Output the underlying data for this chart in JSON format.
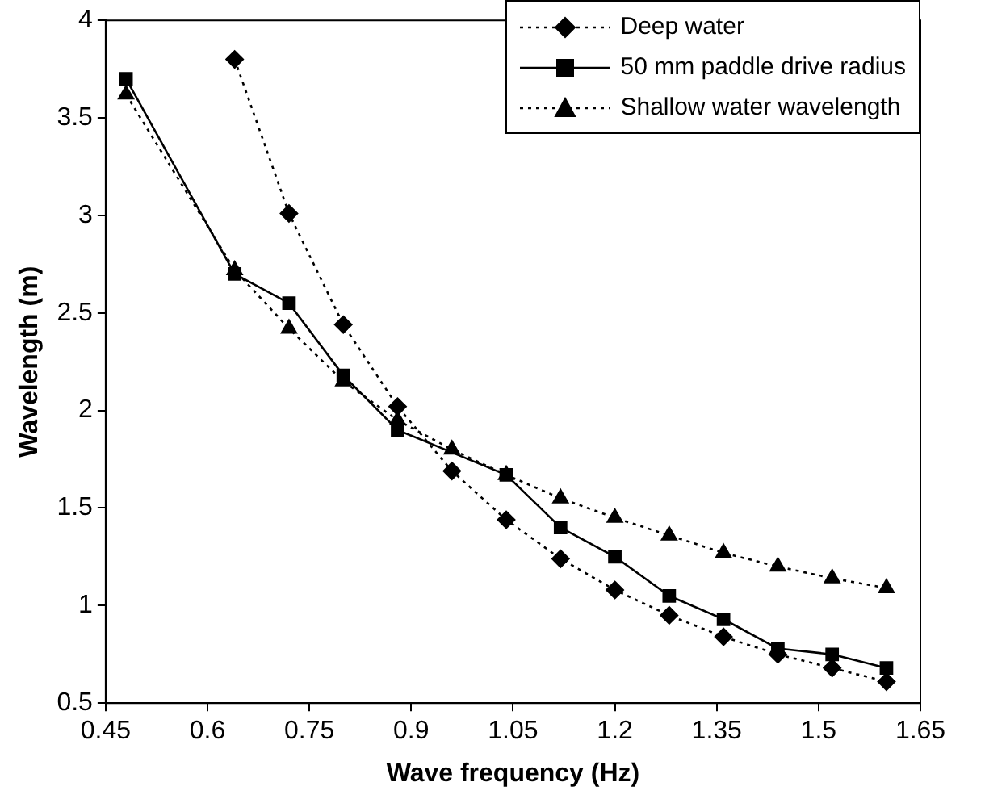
{
  "chart_data": {
    "type": "line",
    "xlabel": "Wave frequency (Hz)",
    "ylabel": "Wavelength (m)",
    "xlim": [
      0.45,
      1.65
    ],
    "xticks": [
      0.45,
      0.6,
      0.75,
      0.9,
      1.05,
      1.2,
      1.35,
      1.5,
      1.65
    ],
    "ylim": [
      0.5,
      4
    ],
    "yticks": [
      0.5,
      1,
      1.5,
      2,
      2.5,
      3,
      3.5,
      4
    ],
    "grid": false,
    "legend": "top right",
    "series": [
      {
        "name": "Deep water",
        "color": "#000000",
        "marker": "diamond",
        "line_style": "dotted",
        "x": [
          0.64,
          0.72,
          0.8,
          0.88,
          0.96,
          1.04,
          1.12,
          1.2,
          1.28,
          1.36,
          1.44,
          1.52,
          1.6
        ],
        "values": [
          3.8,
          3.01,
          2.44,
          2.02,
          1.69,
          1.44,
          1.24,
          1.08,
          0.95,
          0.84,
          0.75,
          0.68,
          0.61
        ]
      },
      {
        "name": "50 mm paddle drive radius",
        "color": "#000000",
        "marker": "square",
        "line_style": "solid",
        "x": [
          0.48,
          0.64,
          0.72,
          0.8,
          0.88,
          1.04,
          1.12,
          1.2,
          1.28,
          1.36,
          1.44,
          1.52,
          1.6
        ],
        "values": [
          3.7,
          2.7,
          2.55,
          2.18,
          1.9,
          1.67,
          1.4,
          1.25,
          1.05,
          0.93,
          0.78,
          0.75,
          0.68
        ]
      },
      {
        "name": "Shallow water wavelength",
        "color": "#000000",
        "marker": "triangle",
        "line_style": "dotted",
        "x": [
          0.48,
          0.64,
          0.72,
          0.8,
          0.88,
          0.96,
          1.04,
          1.12,
          1.2,
          1.28,
          1.36,
          1.44,
          1.52,
          1.6
        ],
        "values": [
          3.62,
          2.72,
          2.42,
          2.15,
          1.95,
          1.8,
          1.67,
          1.55,
          1.45,
          1.36,
          1.27,
          1.2,
          1.14,
          1.09
        ]
      }
    ]
  }
}
